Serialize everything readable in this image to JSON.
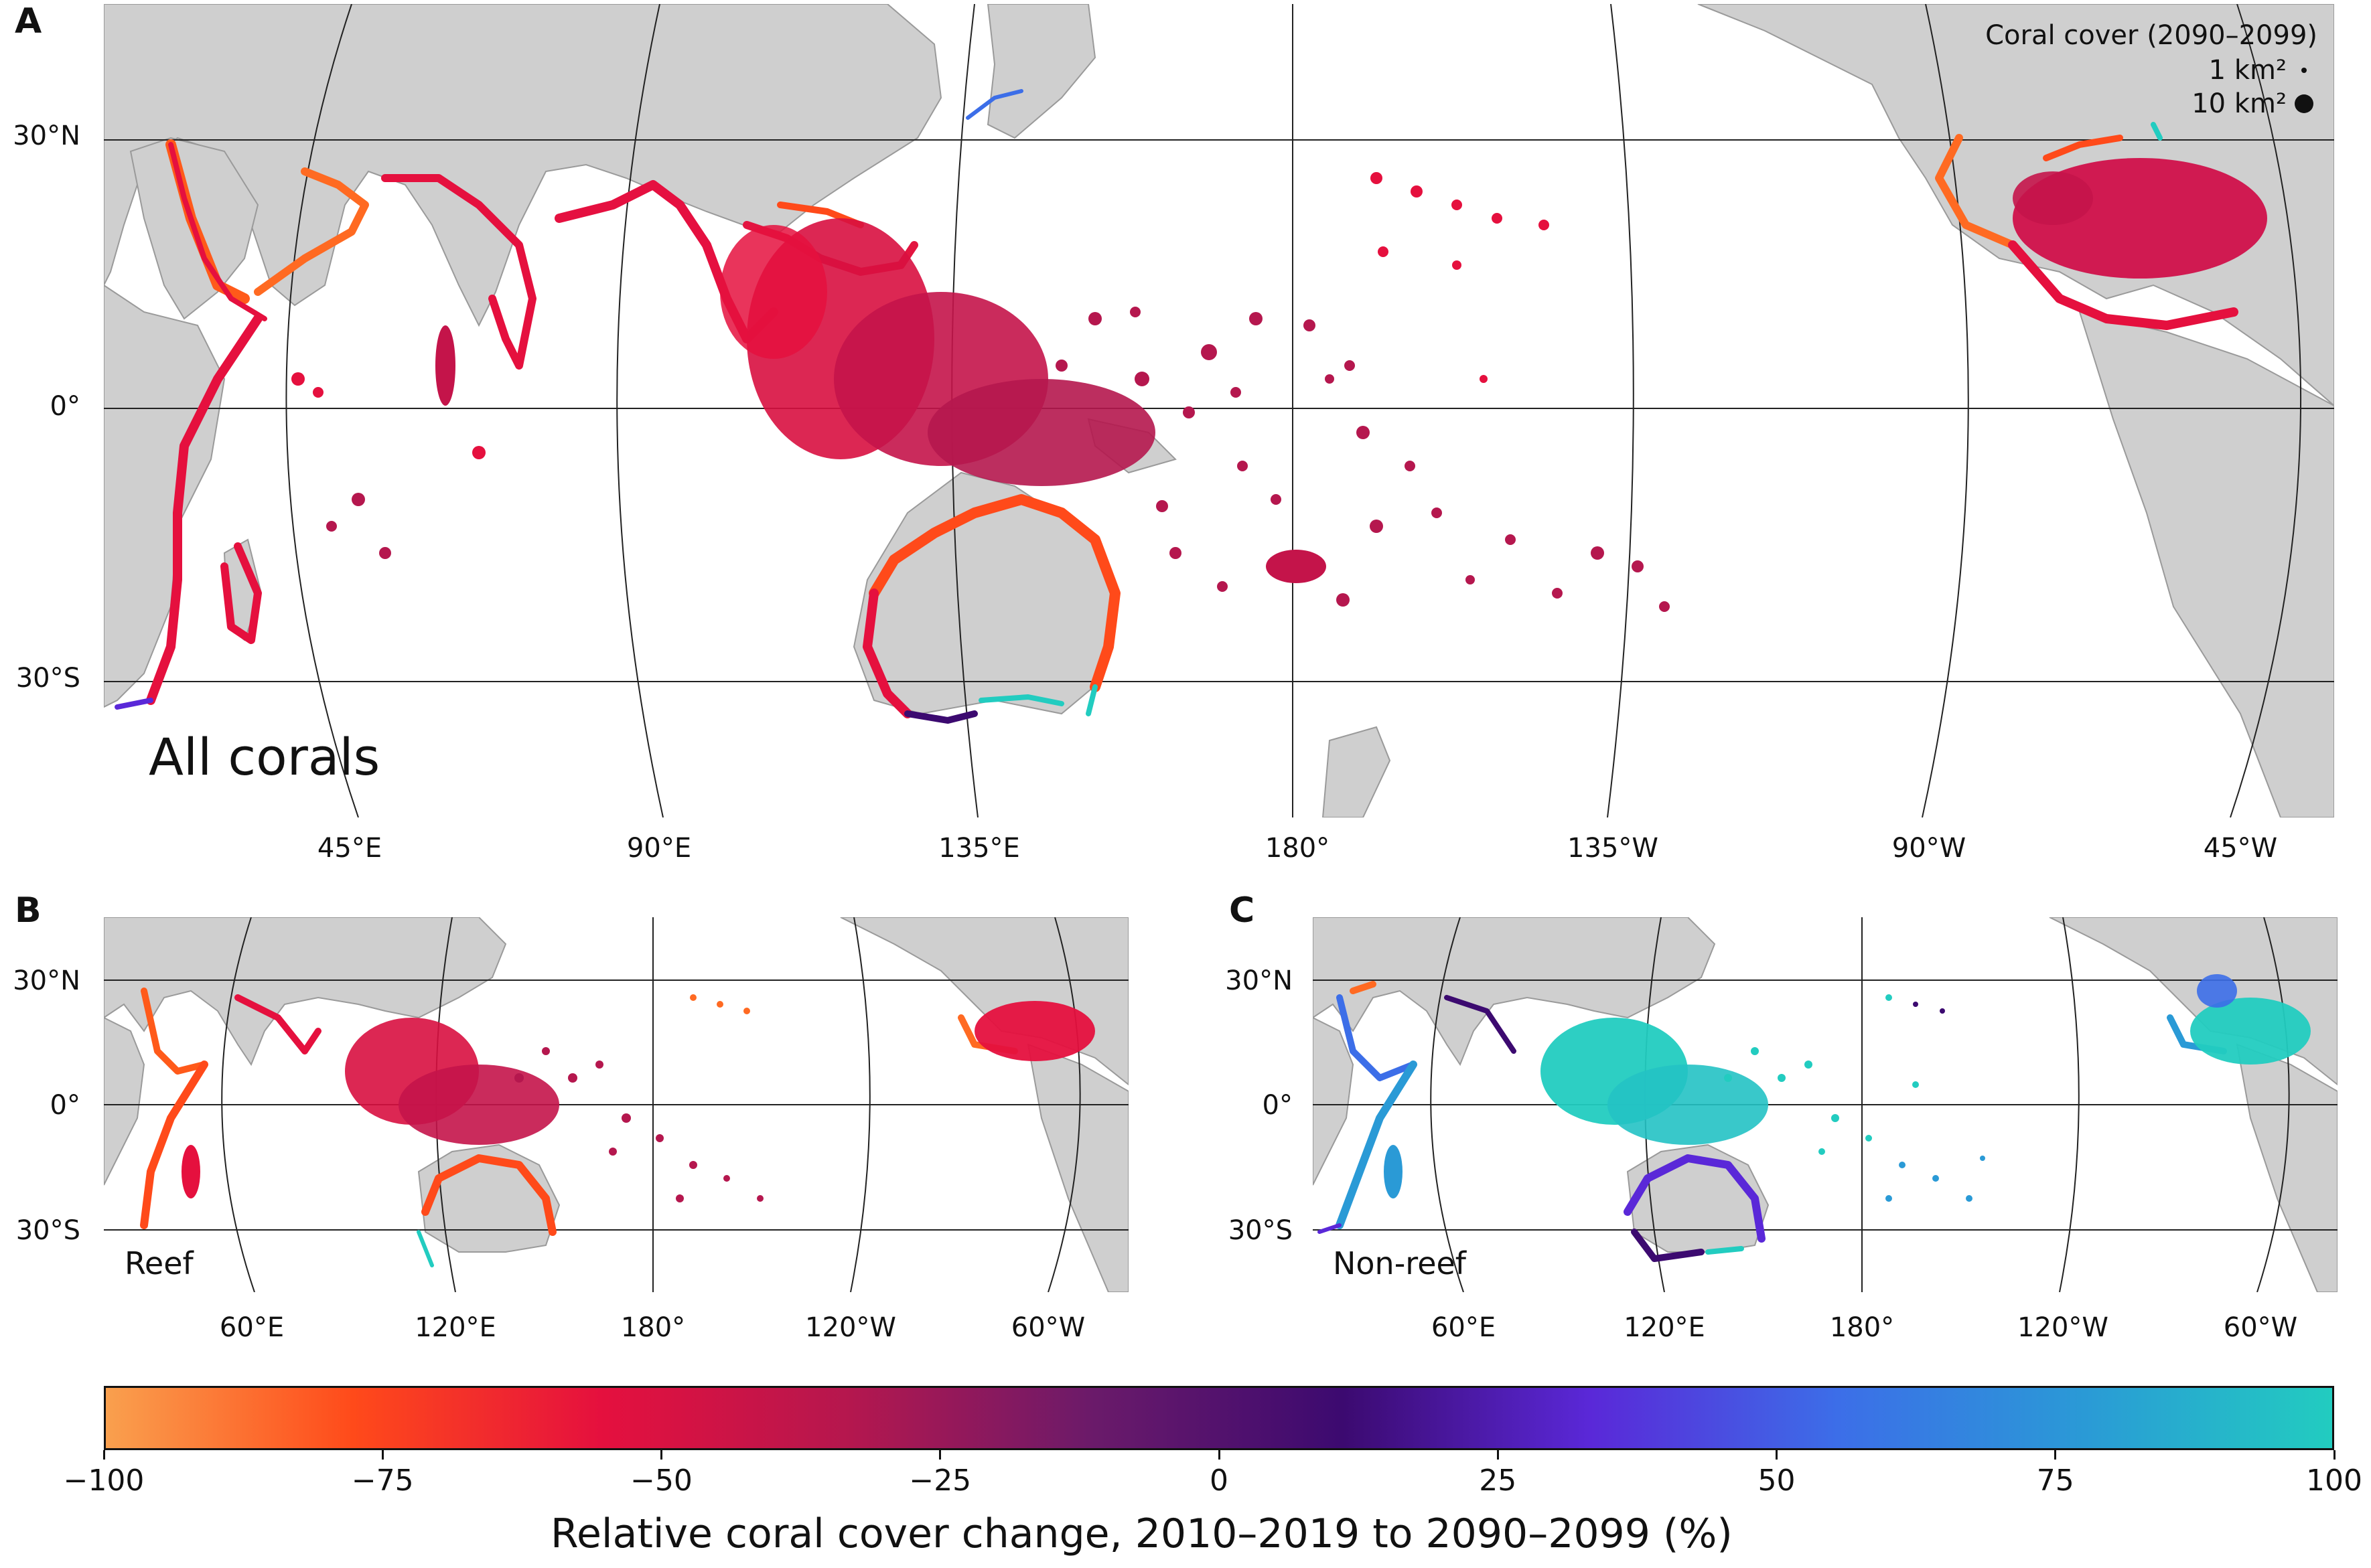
{
  "panels": [
    {
      "letter": "A",
      "title": "All corals",
      "legend": {
        "title": "Coral cover (2090–2099)",
        "items": [
          {
            "value": 1,
            "label": "1 km²"
          },
          {
            "value": 10,
            "label": "10 km²"
          }
        ]
      },
      "lon_ticks": [
        "45°E",
        "90°E",
        "135°E",
        "180°",
        "135°W",
        "90°W",
        "45°W"
      ],
      "lat_ticks": [
        "30°N",
        "0°",
        "30°S"
      ]
    },
    {
      "letter": "B",
      "title": "Reef",
      "lon_ticks": [
        "60°E",
        "120°E",
        "180°",
        "120°W",
        "60°W"
      ],
      "lat_ticks": [
        "30°N",
        "0°",
        "30°S"
      ]
    },
    {
      "letter": "C",
      "title": "Non-reef",
      "lon_ticks": [
        "60°E",
        "120°E",
        "180°",
        "120°W",
        "60°W"
      ],
      "lat_ticks": [
        "30°N",
        "0°",
        "30°S"
      ]
    }
  ],
  "colorbar": {
    "label": "Relative coral cover change, 2010–2019 to 2090–2099 (%)",
    "ticks": [
      "−100",
      "−75",
      "−50",
      "−25",
      "0",
      "25",
      "50",
      "75",
      "100"
    ],
    "range": [
      -100,
      100
    ],
    "colors": [
      "#f9a04e",
      "#ff4a1a",
      "#e5103e",
      "#b5174e",
      "#6a1a6a",
      "#3c0a70",
      "#5a28d8",
      "#3c6ee8",
      "#2a9ad6",
      "#22ccc0"
    ]
  },
  "colors": {
    "land": "#cfcfcf",
    "shallow": "#8c8c8c",
    "frame": "#7f7f7f"
  }
}
